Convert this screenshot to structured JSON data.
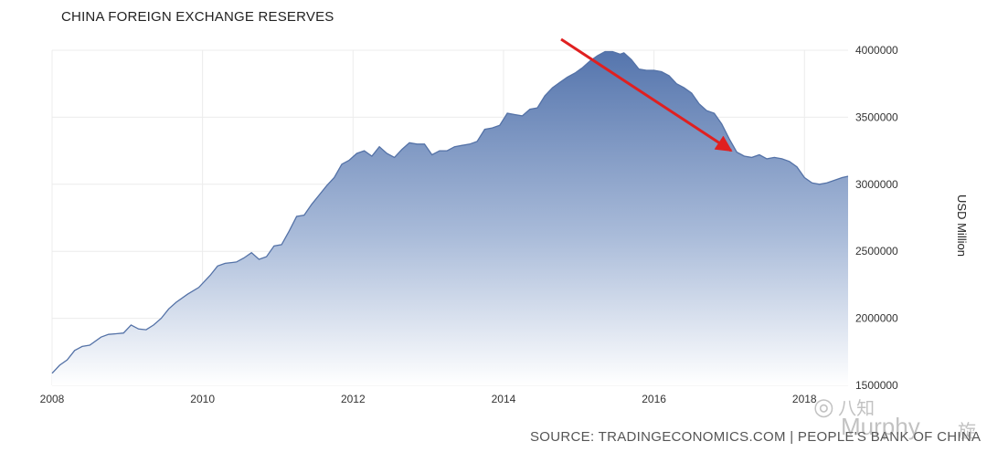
{
  "chart_data": {
    "type": "area",
    "title": "CHINA FOREIGN EXCHANGE RESERVES",
    "source": "SOURCE: TRADINGECONOMICS.COM | PEOPLE'S BANK OF CHINA",
    "ylabel": "USD Million",
    "xlim": [
      2008.0,
      2018.58
    ],
    "ylim": [
      1500000,
      4000000
    ],
    "x_ticks": [
      2008,
      2010,
      2012,
      2014,
      2016,
      2018
    ],
    "y_ticks": [
      1500000,
      2000000,
      2500000,
      3000000,
      3500000,
      4000000
    ],
    "y_tick_labels": [
      "1500000",
      "2000000",
      "2500000",
      "3000000",
      "3500000",
      "4000000"
    ],
    "grid": true,
    "series": [
      {
        "points": [
          [
            2008.0,
            1590000
          ],
          [
            2008.1,
            1650000
          ],
          [
            2008.2,
            1690000
          ],
          [
            2008.3,
            1760000
          ],
          [
            2008.4,
            1790000
          ],
          [
            2008.5,
            1800000
          ],
          [
            2008.65,
            1860000
          ],
          [
            2008.75,
            1880000
          ],
          [
            2008.85,
            1885000
          ],
          [
            2008.95,
            1890000
          ],
          [
            2009.05,
            1950000
          ],
          [
            2009.15,
            1920000
          ],
          [
            2009.25,
            1915000
          ],
          [
            2009.35,
            1950000
          ],
          [
            2009.45,
            2000000
          ],
          [
            2009.55,
            2070000
          ],
          [
            2009.65,
            2120000
          ],
          [
            2009.8,
            2180000
          ],
          [
            2009.95,
            2230000
          ],
          [
            2010.1,
            2320000
          ],
          [
            2010.2,
            2390000
          ],
          [
            2010.3,
            2410000
          ],
          [
            2010.45,
            2420000
          ],
          [
            2010.55,
            2450000
          ],
          [
            2010.65,
            2490000
          ],
          [
            2010.75,
            2440000
          ],
          [
            2010.85,
            2460000
          ],
          [
            2010.95,
            2540000
          ],
          [
            2011.05,
            2550000
          ],
          [
            2011.15,
            2650000
          ],
          [
            2011.25,
            2760000
          ],
          [
            2011.35,
            2770000
          ],
          [
            2011.45,
            2850000
          ],
          [
            2011.55,
            2920000
          ],
          [
            2011.65,
            2990000
          ],
          [
            2011.75,
            3050000
          ],
          [
            2011.85,
            3150000
          ],
          [
            2011.95,
            3180000
          ],
          [
            2012.05,
            3230000
          ],
          [
            2012.15,
            3250000
          ],
          [
            2012.25,
            3210000
          ],
          [
            2012.35,
            3280000
          ],
          [
            2012.45,
            3230000
          ],
          [
            2012.55,
            3200000
          ],
          [
            2012.65,
            3260000
          ],
          [
            2012.75,
            3310000
          ],
          [
            2012.85,
            3300000
          ],
          [
            2012.95,
            3300000
          ],
          [
            2013.05,
            3220000
          ],
          [
            2013.15,
            3250000
          ],
          [
            2013.25,
            3250000
          ],
          [
            2013.35,
            3280000
          ],
          [
            2013.45,
            3290000
          ],
          [
            2013.55,
            3300000
          ],
          [
            2013.65,
            3320000
          ],
          [
            2013.75,
            3410000
          ],
          [
            2013.85,
            3420000
          ],
          [
            2013.95,
            3440000
          ],
          [
            2014.05,
            3530000
          ],
          [
            2014.15,
            3520000
          ],
          [
            2014.25,
            3510000
          ],
          [
            2014.35,
            3560000
          ],
          [
            2014.45,
            3570000
          ],
          [
            2014.55,
            3660000
          ],
          [
            2014.65,
            3720000
          ],
          [
            2014.75,
            3760000
          ],
          [
            2014.85,
            3800000
          ],
          [
            2014.95,
            3830000
          ],
          [
            2015.05,
            3870000
          ],
          [
            2015.15,
            3920000
          ],
          [
            2015.25,
            3960000
          ],
          [
            2015.35,
            3990000
          ],
          [
            2015.45,
            3990000
          ],
          [
            2015.55,
            3970000
          ],
          [
            2015.6,
            3980000
          ],
          [
            2015.7,
            3930000
          ],
          [
            2015.8,
            3860000
          ],
          [
            2015.9,
            3850000
          ],
          [
            2016.0,
            3850000
          ],
          [
            2016.1,
            3840000
          ],
          [
            2016.2,
            3810000
          ],
          [
            2016.3,
            3750000
          ],
          [
            2016.4,
            3720000
          ],
          [
            2016.5,
            3680000
          ],
          [
            2016.6,
            3600000
          ],
          [
            2016.7,
            3550000
          ],
          [
            2016.8,
            3530000
          ],
          [
            2016.9,
            3450000
          ],
          [
            2017.0,
            3340000
          ],
          [
            2017.1,
            3240000
          ],
          [
            2017.2,
            3210000
          ],
          [
            2017.3,
            3200000
          ],
          [
            2017.4,
            3220000
          ],
          [
            2017.5,
            3190000
          ],
          [
            2017.6,
            3200000
          ],
          [
            2017.7,
            3190000
          ],
          [
            2017.8,
            3170000
          ],
          [
            2017.9,
            3130000
          ],
          [
            2018.0,
            3050000
          ],
          [
            2018.1,
            3010000
          ],
          [
            2018.2,
            3000000
          ],
          [
            2018.3,
            3010000
          ],
          [
            2018.4,
            3030000
          ],
          [
            2018.5,
            3050000
          ],
          [
            2018.58,
            3060000
          ]
        ]
      }
    ]
  },
  "watermark": {
    "line1": "八知",
    "line2": "Murphy",
    "line3": "旋"
  }
}
